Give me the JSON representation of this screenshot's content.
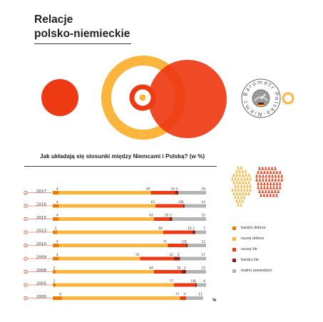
{
  "header": {
    "title_line1": "Relacje",
    "title_line2": "polsko-niemieckie"
  },
  "logo": {
    "ring_text": "Barometr Polska-Niemcy"
  },
  "colors": {
    "bardzo_dobrze": "#f07a00",
    "raczej_dobrze": "#fbb43c",
    "raczej_zle": "#ee3a12",
    "bardzo_zle": "#8c1d18",
    "trudno_powiedziec": "#b3b3b3",
    "accent_red": "#ee3a12",
    "accent_orange": "#fbb43c"
  },
  "chart_data": {
    "type": "bar",
    "stacked": true,
    "orientation": "horizontal",
    "title": "Jak układają się stosunki między Niemcami i Polską? (w %)",
    "xlabel": "%",
    "xlim": [
      0,
      100
    ],
    "categories": [
      "2017",
      "2016",
      "2015",
      "2013",
      "2010",
      "2009",
      "2008",
      "2005",
      "2000"
    ],
    "series": [
      {
        "name": "bardzo dobrze",
        "values": [
          4,
          4,
          4,
          3,
          4,
          4,
          2,
          2,
          6
        ]
      },
      {
        "name": "raczej dobrze",
        "values": [
          60,
          63,
          62,
          69,
          71,
          53,
          64,
          77,
          77
        ]
      },
      {
        "name": "raczej źle",
        "values": [
          16,
          18,
          10,
          19,
          12,
          22,
          18,
          14,
          4
        ]
      },
      {
        "name": "bardzo źle",
        "values": [
          2,
          1,
          2,
          2,
          1,
          4,
          3,
          1,
          0
        ]
      },
      {
        "name": "trudno powiedzieć",
        "values": [
          18,
          14,
          22,
          7,
          12,
          17,
          13,
          6,
          11
        ]
      }
    ],
    "data_labels": [
      [
        "4",
        "60",
        "16",
        "2",
        "18"
      ],
      [
        "4",
        "63",
        "18",
        "1",
        "14"
      ],
      [
        "4",
        "62",
        "10",
        "2",
        "22"
      ],
      [
        "3",
        "69",
        "19",
        "2",
        "7"
      ],
      [
        "4",
        "71",
        "12",
        "1",
        "12"
      ],
      [
        "4",
        "53",
        "22",
        "4",
        "17"
      ],
      [
        "2",
        "64",
        "18",
        "3",
        "13"
      ],
      [
        "2",
        "77",
        "14",
        "1",
        "6"
      ],
      [
        "6",
        "77",
        "4",
        "",
        "11"
      ]
    ],
    "legend_position": "right"
  }
}
